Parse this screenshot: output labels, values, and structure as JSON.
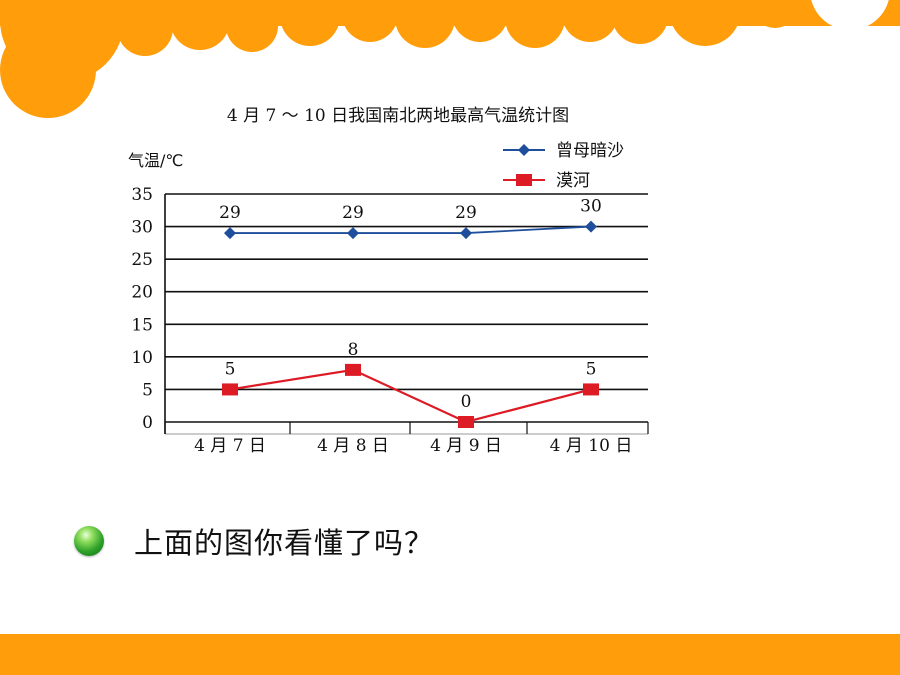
{
  "question": {
    "text": "上面的图你看懂了吗？"
  },
  "colors": {
    "accent_orange": "#ff9d0b",
    "series_blue": "#1f4f9c",
    "series_red": "#dd1b25",
    "bullet_green": "#2ea12a"
  },
  "chart_data": {
    "type": "line",
    "title": "4 月 7 ～ 10 日我国南北两地最高气温统计图",
    "ylabel": "气温/℃",
    "xlabel": "",
    "categories": [
      "4 月 7 日",
      "4 月 8 日",
      "4 月 9 日",
      "4 月 10 日"
    ],
    "ylim": [
      0,
      35
    ],
    "yticks": [
      0,
      5,
      10,
      15,
      20,
      25,
      30,
      35
    ],
    "grid": true,
    "legend_position": "top-right",
    "series": [
      {
        "name": "曾母暗沙",
        "values": [
          29,
          29,
          29,
          30
        ],
        "color": "#1f4f9c",
        "marker": "diamond"
      },
      {
        "name": "漠河",
        "values": [
          5,
          8,
          0,
          5
        ],
        "color": "#dd1b25",
        "marker": "square"
      }
    ]
  }
}
